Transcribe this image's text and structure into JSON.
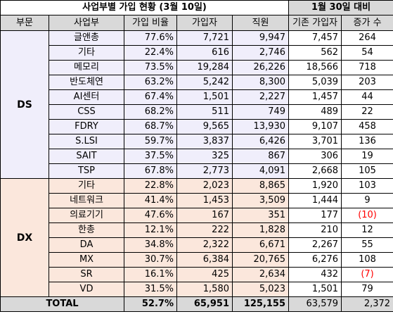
{
  "title_main": "사업부별 가입 현황 (3월 10일)",
  "title_compare": "1월 30일 대비",
  "headers": {
    "group": "부문",
    "division": "사업부",
    "rate": "가입 비율",
    "members": "가입자",
    "staff": "직원",
    "prev": "기존 가입자",
    "increase": "증가 수"
  },
  "groups": [
    {
      "name": "DS",
      "rows": [
        {
          "division": "글앤총",
          "rate": "77.6%",
          "members": "7,721",
          "staff": "9,947",
          "prev": "7,457",
          "increase": "264"
        },
        {
          "division": "기타",
          "rate": "22.4%",
          "members": "616",
          "staff": "2,746",
          "prev": "562",
          "increase": "54"
        },
        {
          "division": "메모리",
          "rate": "73.5%",
          "members": "19,284",
          "staff": "26,226",
          "prev": "18,566",
          "increase": "718"
        },
        {
          "division": "반도체연",
          "rate": "63.2%",
          "members": "5,242",
          "staff": "8,300",
          "prev": "5,039",
          "increase": "203"
        },
        {
          "division": "AI센터",
          "rate": "67.4%",
          "members": "1,501",
          "staff": "2,227",
          "prev": "1,457",
          "increase": "44"
        },
        {
          "division": "CSS",
          "rate": "68.2%",
          "members": "511",
          "staff": "749",
          "prev": "489",
          "increase": "22"
        },
        {
          "division": "FDRY",
          "rate": "68.7%",
          "members": "9,565",
          "staff": "13,930",
          "prev": "9,107",
          "increase": "458"
        },
        {
          "division": "S.LSI",
          "rate": "59.7%",
          "members": "3,837",
          "staff": "6,426",
          "prev": "3,701",
          "increase": "136"
        },
        {
          "division": "SAIT",
          "rate": "37.5%",
          "members": "325",
          "staff": "867",
          "prev": "306",
          "increase": "19"
        },
        {
          "division": "TSP",
          "rate": "67.8%",
          "members": "2,773",
          "staff": "4,091",
          "prev": "2,668",
          "increase": "105"
        }
      ]
    },
    {
      "name": "DX",
      "rows": [
        {
          "division": "기타",
          "rate": "22.8%",
          "members": "2,023",
          "staff": "8,865",
          "prev": "1,920",
          "increase": "103"
        },
        {
          "division": "네트워크",
          "rate": "41.4%",
          "members": "1,453",
          "staff": "3,509",
          "prev": "1,444",
          "increase": "9"
        },
        {
          "division": "의료기기",
          "rate": "47.6%",
          "members": "167",
          "staff": "351",
          "prev": "177",
          "increase": "(10)",
          "negative": true
        },
        {
          "division": "한총",
          "rate": "12.1%",
          "members": "222",
          "staff": "1,828",
          "prev": "210",
          "increase": "12"
        },
        {
          "division": "DA",
          "rate": "34.8%",
          "members": "2,322",
          "staff": "6,671",
          "prev": "2,267",
          "increase": "55"
        },
        {
          "division": "MX",
          "rate": "30.7%",
          "members": "6,384",
          "staff": "20,765",
          "prev": "6,276",
          "increase": "108"
        },
        {
          "division": "SR",
          "rate": "16.1%",
          "members": "425",
          "staff": "2,634",
          "prev": "432",
          "increase": "(7)",
          "negative": true
        },
        {
          "division": "VD",
          "rate": "31.5%",
          "members": "1,580",
          "staff": "5,023",
          "prev": "1,501",
          "increase": "79"
        }
      ]
    }
  ],
  "total": {
    "label": "TOTAL",
    "rate": "52.7%",
    "members": "65,951",
    "staff": "125,155",
    "prev": "63,579",
    "increase": "2,372"
  },
  "colors": {
    "ds_bg": "#f0eefb",
    "dx_bg": "#fbe7dc",
    "header_bg": "#d9d9d9",
    "negative": "#ff0000"
  }
}
